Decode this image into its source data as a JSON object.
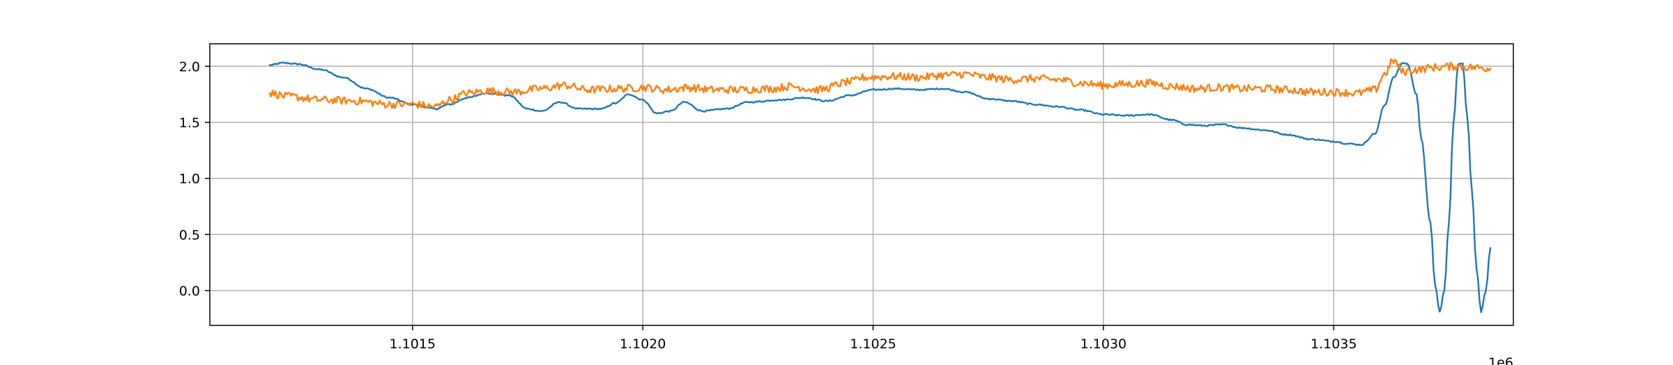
{
  "chart_data": {
    "type": "line",
    "title": "",
    "xlabel": "",
    "ylabel": "",
    "x_offset_label": "1e6",
    "xlim": [
      1.10106,
      1.10389
    ],
    "ylim": [
      -0.31,
      2.2
    ],
    "grid": true,
    "x_ticks": [
      {
        "value": 1.1015,
        "label": "1.1015"
      },
      {
        "value": 1.102,
        "label": "1.1020"
      },
      {
        "value": 1.1025,
        "label": "1.1025"
      },
      {
        "value": 1.103,
        "label": "1.1030"
      },
      {
        "value": 1.1035,
        "label": "1.1035"
      }
    ],
    "y_ticks": [
      {
        "value": 0.0,
        "label": "0.0"
      },
      {
        "value": 0.5,
        "label": "0.5"
      },
      {
        "value": 1.0,
        "label": "1.0"
      },
      {
        "value": 1.5,
        "label": "1.5"
      },
      {
        "value": 2.0,
        "label": "2.0"
      }
    ],
    "series": [
      {
        "color": "#1f77b4",
        "noise": 0.006,
        "points": [
          [
            1.10119,
            2.01
          ],
          [
            1.10122,
            2.03
          ],
          [
            1.10125,
            2.02
          ],
          [
            1.1013,
            1.97
          ],
          [
            1.10135,
            1.9
          ],
          [
            1.1014,
            1.8
          ],
          [
            1.10145,
            1.72
          ],
          [
            1.1015,
            1.66
          ],
          [
            1.10155,
            1.62
          ],
          [
            1.10158,
            1.66
          ],
          [
            1.10162,
            1.72
          ],
          [
            1.10166,
            1.76
          ],
          [
            1.10171,
            1.74
          ],
          [
            1.10175,
            1.62
          ],
          [
            1.10178,
            1.6
          ],
          [
            1.10182,
            1.68
          ],
          [
            1.10186,
            1.62
          ],
          [
            1.10191,
            1.62
          ],
          [
            1.10194,
            1.67
          ],
          [
            1.10197,
            1.75
          ],
          [
            1.102,
            1.7
          ],
          [
            1.10203,
            1.58
          ],
          [
            1.10206,
            1.6
          ],
          [
            1.10209,
            1.68
          ],
          [
            1.10213,
            1.6
          ],
          [
            1.10218,
            1.62
          ],
          [
            1.10223,
            1.68
          ],
          [
            1.1023,
            1.7
          ],
          [
            1.10235,
            1.72
          ],
          [
            1.1024,
            1.69
          ],
          [
            1.10245,
            1.74
          ],
          [
            1.1025,
            1.79
          ],
          [
            1.10255,
            1.8
          ],
          [
            1.1026,
            1.79
          ],
          [
            1.10265,
            1.8
          ],
          [
            1.1027,
            1.77
          ],
          [
            1.10275,
            1.71
          ],
          [
            1.1028,
            1.69
          ],
          [
            1.10285,
            1.66
          ],
          [
            1.1029,
            1.64
          ],
          [
            1.10295,
            1.61
          ],
          [
            1.103,
            1.57
          ],
          [
            1.10305,
            1.56
          ],
          [
            1.1031,
            1.57
          ],
          [
            1.10315,
            1.52
          ],
          [
            1.10318,
            1.48
          ],
          [
            1.10322,
            1.47
          ],
          [
            1.10326,
            1.48
          ],
          [
            1.1033,
            1.45
          ],
          [
            1.10335,
            1.43
          ],
          [
            1.1034,
            1.39
          ],
          [
            1.10345,
            1.35
          ],
          [
            1.1035,
            1.33
          ],
          [
            1.10353,
            1.31
          ],
          [
            1.10356,
            1.3
          ],
          [
            1.10359,
            1.4
          ],
          [
            1.10361,
            1.65
          ],
          [
            1.10363,
            1.9
          ],
          [
            1.10365,
            2.03
          ],
          [
            1.10366,
            2.02
          ],
          [
            1.10368,
            1.75
          ],
          [
            1.10369,
            1.35
          ],
          [
            1.10371,
            0.6
          ],
          [
            1.10372,
            0.05
          ],
          [
            1.10373,
            -0.19
          ],
          [
            1.10374,
            0.0
          ],
          [
            1.10375,
            0.6
          ],
          [
            1.10376,
            1.5
          ],
          [
            1.10377,
            2.02
          ],
          [
            1.10378,
            2.02
          ],
          [
            1.10379,
            1.55
          ],
          [
            1.1038,
            0.9
          ],
          [
            1.10381,
            0.2
          ],
          [
            1.10382,
            -0.19
          ],
          [
            1.10383,
            0.0
          ],
          [
            1.10384,
            0.38
          ]
        ]
      },
      {
        "color": "#ff7f0e",
        "noise": 0.035,
        "points": [
          [
            1.10119,
            1.76
          ],
          [
            1.10123,
            1.73
          ],
          [
            1.1013,
            1.7
          ],
          [
            1.10138,
            1.69
          ],
          [
            1.10145,
            1.66
          ],
          [
            1.1015,
            1.66
          ],
          [
            1.10155,
            1.64
          ],
          [
            1.10158,
            1.7
          ],
          [
            1.10162,
            1.76
          ],
          [
            1.10166,
            1.78
          ],
          [
            1.10172,
            1.77
          ],
          [
            1.10178,
            1.8
          ],
          [
            1.10183,
            1.83
          ],
          [
            1.10188,
            1.79
          ],
          [
            1.10195,
            1.8
          ],
          [
            1.102,
            1.81
          ],
          [
            1.10205,
            1.79
          ],
          [
            1.1021,
            1.81
          ],
          [
            1.10215,
            1.79
          ],
          [
            1.1022,
            1.79
          ],
          [
            1.10228,
            1.8
          ],
          [
            1.10232,
            1.82
          ],
          [
            1.10238,
            1.79
          ],
          [
            1.10245,
            1.86
          ],
          [
            1.10248,
            1.9
          ],
          [
            1.10255,
            1.91
          ],
          [
            1.1026,
            1.9
          ],
          [
            1.10265,
            1.92
          ],
          [
            1.1027,
            1.93
          ],
          [
            1.10275,
            1.9
          ],
          [
            1.1028,
            1.88
          ],
          [
            1.10285,
            1.89
          ],
          [
            1.1029,
            1.88
          ],
          [
            1.10295,
            1.85
          ],
          [
            1.103,
            1.83
          ],
          [
            1.10305,
            1.84
          ],
          [
            1.1031,
            1.85
          ],
          [
            1.10315,
            1.82
          ],
          [
            1.1032,
            1.8
          ],
          [
            1.10325,
            1.81
          ],
          [
            1.1033,
            1.8
          ],
          [
            1.10335,
            1.8
          ],
          [
            1.1034,
            1.79
          ],
          [
            1.10345,
            1.77
          ],
          [
            1.1035,
            1.77
          ],
          [
            1.10355,
            1.76
          ],
          [
            1.10359,
            1.79
          ],
          [
            1.10361,
            1.93
          ],
          [
            1.10363,
            2.05
          ],
          [
            1.10365,
            1.95
          ],
          [
            1.10368,
            1.97
          ],
          [
            1.10372,
            1.99
          ],
          [
            1.10376,
            2.0
          ],
          [
            1.1038,
            1.99
          ],
          [
            1.10384,
            1.98
          ]
        ]
      }
    ]
  }
}
